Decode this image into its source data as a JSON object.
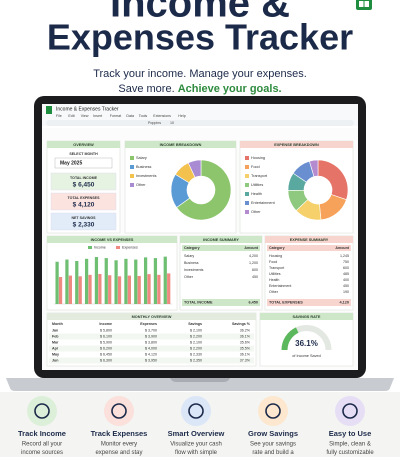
{
  "header": {
    "title_line1": "Income &",
    "title_line2": "Expenses Tracker",
    "tagline1": "Track your income. Manage your expenses.",
    "tagline2a": "Save more.",
    "tagline2b": "Achieve your goals."
  },
  "sheet": {
    "doc_title": "Income & Expenses Tracker",
    "menu": [
      "File",
      "Edit",
      "View",
      "Insert",
      "Format",
      "Data",
      "Tools",
      "Extensions",
      "Help"
    ],
    "toolbar": {
      "font": "Poppins",
      "size": "10"
    },
    "overview": {
      "title": "OVERVIEW",
      "select_label": "SELECT MONTH",
      "month": "May 2025",
      "cards": [
        {
          "label": "TOTAL INCOME",
          "value": "$ 6,450",
          "color": "#e6f3e2"
        },
        {
          "label": "TOTAL EXPENSES",
          "value": "$ 4,120",
          "color": "#fbe3e0"
        },
        {
          "label": "NET SAVINGS",
          "value": "$ 2,330",
          "color": "#e1ecf8"
        }
      ]
    },
    "income_breakdown": {
      "title": "INCOME BREAKDOWN",
      "slices": [
        {
          "name": "Salary",
          "value": 4200,
          "color": "#8cc56b"
        },
        {
          "name": "Business",
          "value": 1200,
          "color": "#5b9bd5"
        },
        {
          "name": "Investments",
          "value": 600,
          "color": "#f2c14e"
        },
        {
          "name": "Other",
          "value": 450,
          "color": "#a98bd3"
        }
      ]
    },
    "expense_breakdown": {
      "title": "EXPENSE BREAKDOWN",
      "slices": [
        {
          "name": "Housing",
          "value": 1245,
          "color": "#e57368"
        },
        {
          "name": "Food",
          "value": 750,
          "color": "#f6a25a"
        },
        {
          "name": "Transport",
          "value": 600,
          "color": "#f5d06b"
        },
        {
          "name": "Utilities",
          "value": 485,
          "color": "#8fc97f"
        },
        {
          "name": "Health",
          "value": 400,
          "color": "#5aa9a0"
        },
        {
          "name": "Entertainment",
          "value": 450,
          "color": "#6a8fd0"
        },
        {
          "name": "Other",
          "value": 190,
          "color": "#b58bd0"
        }
      ]
    },
    "income_vs_expenses": {
      "title": "INCOME VS EXPENSES",
      "ylim": [
        0,
        7000
      ],
      "series": [
        {
          "name": "Income",
          "color": "#6fbf73",
          "values": [
            5800,
            6100,
            5900,
            6200,
            6450,
            6300,
            6000,
            6200,
            6100,
            6400,
            6300,
            6500
          ]
        },
        {
          "name": "Expenses",
          "color": "#ef8a80",
          "values": [
            3700,
            3900,
            3800,
            4000,
            4120,
            3950,
            3800,
            3900,
            3850,
            4100,
            4000,
            4200
          ]
        }
      ]
    },
    "income_summary": {
      "title": "INCOME SUMMARY",
      "headers": [
        "Category",
        "Amount"
      ],
      "rows": [
        [
          "Salary",
          "4,200"
        ],
        [
          "Business",
          "1,200"
        ],
        [
          "Investments",
          "600"
        ],
        [
          "Other",
          "450"
        ]
      ],
      "total_label": "TOTAL INCOME",
      "total": "6,450"
    },
    "expense_summary": {
      "title": "EXPENSE SUMMARY",
      "headers": [
        "Category",
        "Amount"
      ],
      "rows": [
        [
          "Housing",
          "1,245"
        ],
        [
          "Food",
          "750"
        ],
        [
          "Transport",
          "600"
        ],
        [
          "Utilities",
          "485"
        ],
        [
          "Health",
          "400"
        ],
        [
          "Entertainment",
          "450"
        ],
        [
          "Other",
          "190"
        ]
      ],
      "total_label": "TOTAL EXPENSES",
      "total": "4,120"
    },
    "monthly_overview": {
      "title": "MONTHLY OVERVIEW",
      "headers": [
        "Month",
        "Income",
        "Expenses",
        "Savings",
        "Savings %"
      ],
      "rows": [
        [
          "Jan",
          "$ 5,800",
          "$ 3,700",
          "$ 2,100",
          "36.2%"
        ],
        [
          "Feb",
          "$ 6,100",
          "$ 3,900",
          "$ 2,200",
          "36.1%"
        ],
        [
          "Mar",
          "$ 5,900",
          "$ 3,800",
          "$ 2,100",
          "35.6%"
        ],
        [
          "Apr",
          "$ 6,200",
          "$ 4,000",
          "$ 2,200",
          "35.5%"
        ],
        [
          "May",
          "$ 6,450",
          "$ 4,120",
          "$ 2,330",
          "36.1%"
        ],
        [
          "Jun",
          "$ 6,300",
          "$ 3,950",
          "$ 2,350",
          "37.3%"
        ]
      ]
    },
    "savings_rate": {
      "title": "SAVINGS RATE",
      "value": 36.1,
      "value_label": "36.1%",
      "caption": "of Income Saved"
    }
  },
  "features": [
    {
      "title": "Track Income",
      "line1": "Record all your",
      "line2": "income sources",
      "color": "#dcefd9"
    },
    {
      "title": "Track Expenses",
      "line1": "Monitor every",
      "line2": "expense and stay",
      "color": "#fbe0dc"
    },
    {
      "title": "Smart Overview",
      "line1": "Visualize your cash",
      "line2": "flow with simple",
      "color": "#dbe6f7"
    },
    {
      "title": "Grow Savings",
      "line1": "See your savings",
      "line2": "rate and build a",
      "color": "#fde7cf"
    },
    {
      "title": "Easy to Use",
      "line1": "Simple, clean &",
      "line2": "fully customizable",
      "color": "#e6def5"
    }
  ]
}
